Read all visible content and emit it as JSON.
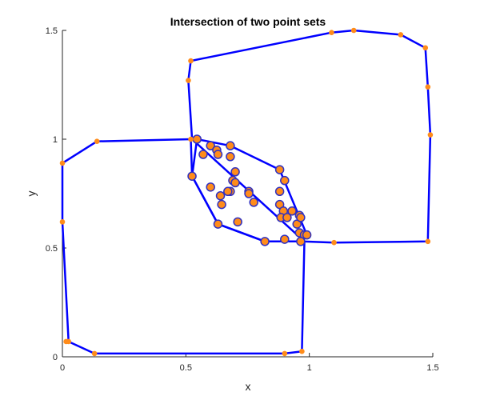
{
  "chart_data": {
    "type": "scatter",
    "title": "Intersection of two point sets",
    "xlabel": "x",
    "ylabel": "y",
    "xlim": [
      0,
      1.5
    ],
    "ylim": [
      0,
      1.5
    ],
    "xticks": [
      {
        "value": 0,
        "label": "0"
      },
      {
        "value": 0.5,
        "label": "0.5"
      },
      {
        "value": 1,
        "label": "1"
      },
      {
        "value": 1.5,
        "label": "1.5"
      }
    ],
    "yticks": [
      {
        "value": 0,
        "label": "0"
      },
      {
        "value": 0.5,
        "label": "0.5"
      },
      {
        "value": 1,
        "label": "1"
      },
      {
        "value": 1.5,
        "label": "1.5"
      }
    ],
    "grid": false,
    "legend": "none",
    "colors": {
      "hull": "#0000ff",
      "point_fill": "#ff8c1a",
      "point_edge": "#3030c0"
    },
    "hulls": [
      {
        "points": [
          [
            0.0,
            0.89
          ],
          [
            0.14,
            0.99
          ],
          [
            0.52,
            1.0
          ],
          [
            0.525,
            0.83
          ],
          [
            0.63,
            0.61
          ],
          [
            0.82,
            0.53
          ],
          [
            0.98,
            0.53
          ],
          [
            0.97,
            0.025
          ],
          [
            0.9,
            0.015
          ],
          [
            0.13,
            0.015
          ],
          [
            0.025,
            0.07
          ],
          [
            0.0,
            0.62
          ],
          [
            0.0,
            0.89
          ]
        ]
      },
      {
        "points": [
          [
            0.51,
            1.27
          ],
          [
            0.52,
            1.36
          ],
          [
            1.09,
            1.49
          ],
          [
            1.18,
            1.5
          ],
          [
            1.37,
            1.48
          ],
          [
            1.47,
            1.42
          ],
          [
            1.48,
            1.24
          ],
          [
            1.49,
            1.02
          ],
          [
            1.48,
            0.53
          ],
          [
            1.1,
            0.525
          ],
          [
            0.98,
            0.53
          ],
          [
            0.525,
            1.0
          ],
          [
            0.51,
            1.27
          ]
        ]
      },
      {
        "points": [
          [
            0.545,
            1.0
          ],
          [
            0.68,
            0.97
          ],
          [
            0.88,
            0.86
          ],
          [
            0.99,
            0.56
          ],
          [
            0.96,
            0.53
          ],
          [
            0.82,
            0.53
          ],
          [
            0.63,
            0.61
          ],
          [
            0.525,
            0.83
          ],
          [
            0.545,
            1.0
          ]
        ]
      }
    ],
    "hull_vertices": [
      [
        0.0,
        0.89
      ],
      [
        0.14,
        0.99
      ],
      [
        0.52,
        1.0
      ],
      [
        0.525,
        0.83
      ],
      [
        0.97,
        0.025
      ],
      [
        0.9,
        0.015
      ],
      [
        0.13,
        0.015
      ],
      [
        0.025,
        0.07
      ],
      [
        0.015,
        0.07
      ],
      [
        0.0,
        0.62
      ],
      [
        0.51,
        1.27
      ],
      [
        0.52,
        1.36
      ],
      [
        1.09,
        1.49
      ],
      [
        1.18,
        1.5
      ],
      [
        1.37,
        1.48
      ],
      [
        1.47,
        1.42
      ],
      [
        1.48,
        1.24
      ],
      [
        1.49,
        1.02
      ],
      [
        1.48,
        0.53
      ],
      [
        1.1,
        0.525
      ]
    ],
    "intersection_points": [
      [
        0.545,
        1.0
      ],
      [
        0.57,
        0.93
      ],
      [
        0.6,
        0.97
      ],
      [
        0.625,
        0.95
      ],
      [
        0.63,
        0.93
      ],
      [
        0.68,
        0.97
      ],
      [
        0.68,
        0.92
      ],
      [
        0.7,
        0.85
      ],
      [
        0.69,
        0.81
      ],
      [
        0.7,
        0.8
      ],
      [
        0.68,
        0.76
      ],
      [
        0.67,
        0.76
      ],
      [
        0.6,
        0.78
      ],
      [
        0.64,
        0.74
      ],
      [
        0.645,
        0.7
      ],
      [
        0.755,
        0.76
      ],
      [
        0.755,
        0.75
      ],
      [
        0.775,
        0.71
      ],
      [
        0.71,
        0.62
      ],
      [
        0.63,
        0.61
      ],
      [
        0.88,
        0.86
      ],
      [
        0.9,
        0.81
      ],
      [
        0.88,
        0.76
      ],
      [
        0.88,
        0.7
      ],
      [
        0.895,
        0.67
      ],
      [
        0.885,
        0.64
      ],
      [
        0.91,
        0.64
      ],
      [
        0.93,
        0.67
      ],
      [
        0.95,
        0.61
      ],
      [
        0.96,
        0.65
      ],
      [
        0.965,
        0.64
      ],
      [
        0.96,
        0.57
      ],
      [
        0.98,
        0.56
      ],
      [
        0.99,
        0.56
      ],
      [
        0.965,
        0.53
      ],
      [
        0.82,
        0.53
      ],
      [
        0.9,
        0.54
      ],
      [
        0.525,
        0.83
      ]
    ]
  }
}
